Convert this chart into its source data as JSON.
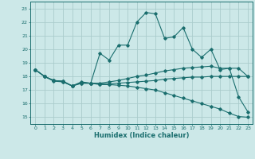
{
  "title": "",
  "xlabel": "Humidex (Indice chaleur)",
  "ylabel": "",
  "bg_color": "#cce8e8",
  "grid_color": "#aacccc",
  "line_color": "#1a6e6e",
  "xlim": [
    -0.5,
    23.5
  ],
  "ylim": [
    14.5,
    23.5
  ],
  "xticks": [
    0,
    1,
    2,
    3,
    4,
    5,
    6,
    7,
    8,
    9,
    10,
    11,
    12,
    13,
    14,
    15,
    16,
    17,
    18,
    19,
    20,
    21,
    22,
    23
  ],
  "yticks": [
    15,
    16,
    17,
    18,
    19,
    20,
    21,
    22,
    23
  ],
  "series": [
    {
      "x": [
        0,
        1,
        2,
        3,
        4,
        5,
        6,
        7,
        8,
        9,
        10,
        11,
        12,
        13,
        14,
        15,
        16,
        17,
        18,
        19,
        20,
        21,
        22,
        23
      ],
      "y": [
        18.5,
        18.0,
        17.7,
        17.6,
        17.3,
        17.6,
        17.5,
        19.7,
        19.2,
        20.3,
        20.3,
        22.0,
        22.7,
        22.6,
        20.8,
        20.9,
        21.6,
        20.0,
        19.4,
        20.0,
        18.5,
        18.6,
        16.5,
        15.4
      ]
    },
    {
      "x": [
        0,
        1,
        2,
        3,
        4,
        5,
        6,
        7,
        8,
        9,
        10,
        11,
        12,
        13,
        14,
        15,
        16,
        17,
        18,
        19,
        20,
        21,
        22,
        23
      ],
      "y": [
        18.5,
        18.0,
        17.7,
        17.65,
        17.3,
        17.55,
        17.5,
        17.5,
        17.6,
        17.7,
        17.85,
        18.0,
        18.1,
        18.25,
        18.4,
        18.5,
        18.6,
        18.65,
        18.7,
        18.75,
        18.6,
        18.6,
        18.6,
        18.0
      ]
    },
    {
      "x": [
        0,
        1,
        2,
        3,
        4,
        5,
        6,
        7,
        8,
        9,
        10,
        11,
        12,
        13,
        14,
        15,
        16,
        17,
        18,
        19,
        20,
        21,
        22,
        23
      ],
      "y": [
        18.5,
        18.0,
        17.7,
        17.65,
        17.3,
        17.5,
        17.5,
        17.45,
        17.45,
        17.5,
        17.55,
        17.6,
        17.65,
        17.7,
        17.8,
        17.85,
        17.9,
        17.95,
        17.95,
        18.0,
        18.0,
        18.0,
        18.0,
        18.0
      ]
    },
    {
      "x": [
        0,
        1,
        2,
        3,
        4,
        5,
        6,
        7,
        8,
        9,
        10,
        11,
        12,
        13,
        14,
        15,
        16,
        17,
        18,
        19,
        20,
        21,
        22,
        23
      ],
      "y": [
        18.5,
        18.0,
        17.65,
        17.6,
        17.3,
        17.5,
        17.5,
        17.4,
        17.4,
        17.35,
        17.3,
        17.2,
        17.1,
        17.0,
        16.8,
        16.6,
        16.4,
        16.2,
        16.0,
        15.8,
        15.6,
        15.3,
        15.05,
        15.0
      ]
    }
  ]
}
